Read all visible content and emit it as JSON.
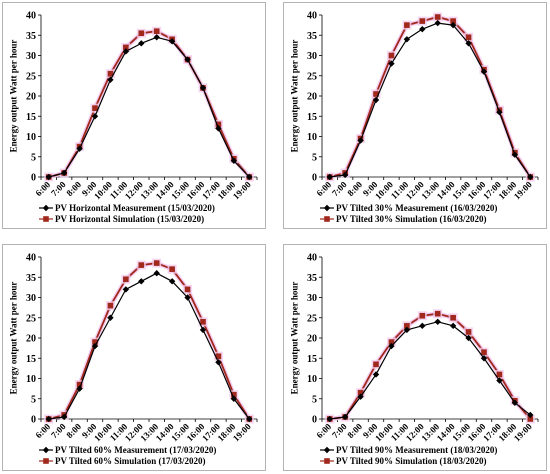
{
  "chart_data": [
    {
      "type": "line",
      "categories": [
        "6:00",
        "7:00",
        "8:00",
        "9:00",
        "10:00",
        "11:00",
        "12:00",
        "13:00",
        "14:00",
        "15:00",
        "16:00",
        "17:00",
        "18:00",
        "19:00"
      ],
      "ylabel": "Energy output Watt per hour",
      "ylim": [
        0,
        40
      ],
      "yticks": [
        0,
        5,
        10,
        15,
        20,
        25,
        30,
        35,
        40
      ],
      "series": [
        {
          "name": "PV Horizontal  Measurement (15/03/2020)",
          "color": "#000000",
          "marker": "diamond",
          "values": [
            0,
            1,
            7,
            15,
            24,
            31,
            33,
            34.5,
            33.5,
            29,
            22,
            12,
            4,
            0
          ]
        },
        {
          "name": "PV Horizontal  Simulation (15/03/2020)",
          "color": "#a0281c",
          "marker": "square",
          "values": [
            0,
            1,
            7.5,
            17,
            25.5,
            32,
            35.5,
            36,
            34,
            29,
            22,
            13,
            4.5,
            0
          ]
        }
      ]
    },
    {
      "type": "line",
      "categories": [
        "6:00",
        "7:00",
        "8:00",
        "9:00",
        "10:00",
        "11:00",
        "12:00",
        "13:00",
        "14:00",
        "15:00",
        "16:00",
        "17:00",
        "18:00",
        "19:00"
      ],
      "ylabel": "Energy output Watt per hour",
      "ylim": [
        0,
        40
      ],
      "yticks": [
        0,
        5,
        10,
        15,
        20,
        25,
        30,
        35,
        40
      ],
      "series": [
        {
          "name": "PV Tilted 30% Measurement  (16/03/2020)",
          "color": "#000000",
          "marker": "diamond",
          "values": [
            0,
            0.5,
            9,
            19,
            28,
            34,
            36.5,
            38,
            37.5,
            33,
            26,
            16,
            5.5,
            0
          ]
        },
        {
          "name": "PV Tilted 30% Simulation (16/03/2020)",
          "color": "#a0281c",
          "marker": "square",
          "values": [
            0,
            1,
            9.5,
            20.5,
            30,
            37.5,
            38.5,
            39.5,
            38.5,
            34.5,
            26.5,
            16.5,
            6,
            0
          ]
        }
      ]
    },
    {
      "type": "line",
      "categories": [
        "6:00",
        "7:00",
        "8:00",
        "9:00",
        "10:00",
        "11:00",
        "12:00",
        "13:00",
        "14:00",
        "15:00",
        "16:00",
        "17:00",
        "18:00",
        "19:00"
      ],
      "ylabel": "Energy output Watt per hour",
      "ylim": [
        0,
        40
      ],
      "yticks": [
        0,
        5,
        10,
        15,
        20,
        25,
        30,
        35,
        40
      ],
      "series": [
        {
          "name": "PV Tilted 60% Measurement  (17/03/2020)",
          "color": "#000000",
          "marker": "diamond",
          "values": [
            0,
            0.5,
            7.5,
            18,
            25,
            32,
            34,
            36,
            34,
            30,
            22,
            14,
            5,
            0
          ]
        },
        {
          "name": "PV Tilted 60% Simulation (17/03/2020)",
          "color": "#a0281c",
          "marker": "square",
          "values": [
            0,
            1,
            8.5,
            19,
            28,
            34.5,
            38,
            38.5,
            37,
            32,
            24,
            15.5,
            6,
            0
          ]
        }
      ]
    },
    {
      "type": "line",
      "categories": [
        "6:00",
        "7:00",
        "8:00",
        "9:00",
        "10:00",
        "11:00",
        "12:00",
        "13:00",
        "14:00",
        "15:00",
        "16:00",
        "17:00",
        "18:00",
        "19:00"
      ],
      "ylabel": "Energy output Watt per hour",
      "ylim": [
        0,
        40
      ],
      "yticks": [
        0,
        5,
        10,
        15,
        20,
        25,
        30,
        35,
        40
      ],
      "series": [
        {
          "name": "PV Tilted 90% Measurement  (18/03/2020)",
          "color": "#000000",
          "marker": "diamond",
          "values": [
            0,
            0.5,
            5.5,
            11,
            18,
            22,
            23,
            24,
            23,
            20,
            15,
            9.5,
            4,
            1
          ]
        },
        {
          "name": "PV Tilted 90% Simulation (18/03/2020)",
          "color": "#a0281c",
          "marker": "square",
          "values": [
            0,
            0.5,
            6.5,
            13.5,
            19,
            23,
            25.5,
            26,
            25,
            21.5,
            16.5,
            11,
            4.5,
            0
          ]
        }
      ]
    }
  ]
}
